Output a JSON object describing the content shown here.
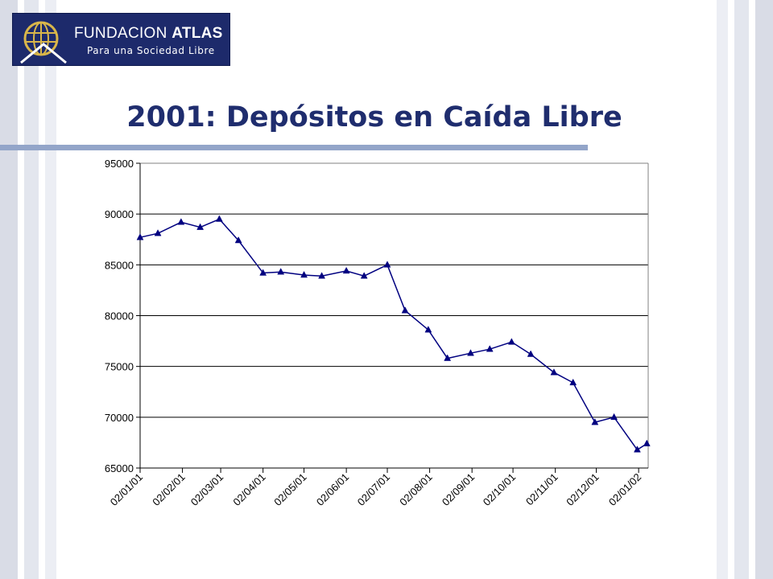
{
  "logo": {
    "name_part1": "FUNDACION ",
    "name_part2": "ATLAS",
    "tagline": "Para una Sociedad Libre",
    "colors": {
      "background": "#1d2a6b",
      "emblem": "#d9b64a"
    }
  },
  "slide": {
    "title": "2001: Depósitos en Caída Libre"
  },
  "chart_data": {
    "type": "line",
    "title": "",
    "xlabel": "",
    "ylabel": "",
    "ylim": [
      65000,
      95000
    ],
    "yticks": [
      65000,
      70000,
      75000,
      80000,
      85000,
      90000,
      95000
    ],
    "ytick_labels": [
      "65000",
      "70000",
      "75000",
      "80000",
      "85000",
      "90000",
      "95000"
    ],
    "x_tick_labels": [
      "02/01/01",
      "02/02/01",
      "02/03/01",
      "02/04/01",
      "02/05/01",
      "02/06/01",
      "02/07/01",
      "02/08/01",
      "02/09/01",
      "02/10/01",
      "02/11/01",
      "02/12/01",
      "02/01/02"
    ],
    "grid": {
      "horizontal": true,
      "vertical": false
    },
    "legend": "none",
    "colors": {
      "line": "#000080",
      "marker": "#000080",
      "grid": "#000000"
    },
    "series": [
      {
        "x": [
          "02/01/01",
          "15/01/01",
          "01/02/01",
          "15/02/01",
          "01/03/01",
          "15/03/01",
          "02/04/01",
          "15/04/01",
          "02/05/01",
          "15/05/01",
          "02/06/01",
          "15/06/01",
          "02/07/01",
          "15/07/01",
          "01/08/01",
          "15/08/01",
          "01/09/01",
          "15/09/01",
          "01/10/01",
          "15/10/01",
          "01/11/01",
          "15/11/01",
          "01/12/01",
          "15/12/01",
          "01/01/02",
          "08/01/02"
        ],
        "values": [
          87700,
          88100,
          89200,
          88700,
          89500,
          87400,
          84200,
          84300,
          84000,
          83900,
          84400,
          83900,
          85000,
          80500,
          78600,
          75800,
          76300,
          76700,
          77400,
          76200,
          74400,
          73400,
          69500,
          70000,
          66800,
          67400
        ]
      }
    ]
  }
}
